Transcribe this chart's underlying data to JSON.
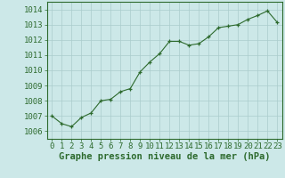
{
  "x": [
    0,
    1,
    2,
    3,
    4,
    5,
    6,
    7,
    8,
    9,
    10,
    11,
    12,
    13,
    14,
    15,
    16,
    17,
    18,
    19,
    20,
    21,
    22,
    23
  ],
  "y": [
    1007.0,
    1006.5,
    1006.3,
    1006.9,
    1007.2,
    1008.0,
    1008.1,
    1008.6,
    1008.8,
    1009.9,
    1010.55,
    1011.1,
    1011.9,
    1011.9,
    1011.65,
    1011.75,
    1012.2,
    1012.8,
    1012.9,
    1013.0,
    1013.35,
    1013.6,
    1013.9,
    1013.15
  ],
  "line_color": "#2d6a2d",
  "marker": "+",
  "bg_color": "#cce8e8",
  "grid_color": "#aacccc",
  "axis_color": "#2d6a2d",
  "xlabel": "Graphe pression niveau de la mer (hPa)",
  "ylim": [
    1005.5,
    1014.5
  ],
  "xlim": [
    -0.5,
    23.5
  ],
  "yticks": [
    1006,
    1007,
    1008,
    1009,
    1010,
    1011,
    1012,
    1013,
    1014
  ],
  "xticks": [
    0,
    1,
    2,
    3,
    4,
    5,
    6,
    7,
    8,
    9,
    10,
    11,
    12,
    13,
    14,
    15,
    16,
    17,
    18,
    19,
    20,
    21,
    22,
    23
  ],
  "label_fontsize": 6.5,
  "xlabel_fontsize": 7.5,
  "tick_label_color": "#2d6a2d"
}
